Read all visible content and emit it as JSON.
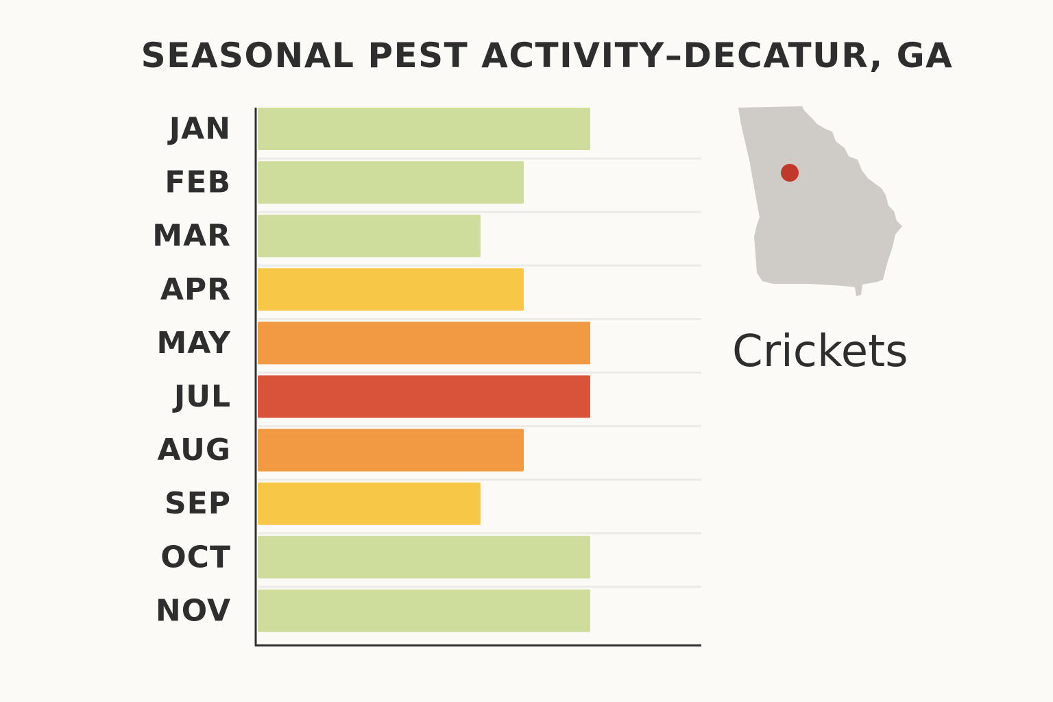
{
  "colors": {
    "background": "#fbfaf6",
    "axis": "#2e2e2e",
    "gridline": "#ecebe6",
    "low": "#cfdd9c",
    "moderate": "#f7c748",
    "high": "#f29a41",
    "peak": "#d9533b",
    "map_fill": "#cfcbc6",
    "map_marker": "#c0392b"
  },
  "map": {
    "icon": "georgia-state-map-icon",
    "marker_icon": "location-dot-icon"
  },
  "species": "Crickets",
  "chart_data": {
    "type": "bar",
    "orientation": "horizontal",
    "title": "SEASONAL PEST ACTIVITY–DECATUR, GA",
    "xlabel": "",
    "ylabel": "",
    "categories": [
      "JAN",
      "FEB",
      "MAR",
      "APR",
      "MAY",
      "JUL",
      "AUG",
      "SEP",
      "OCT",
      "NOV"
    ],
    "values": [
      5.0,
      4.0,
      3.35,
      4.0,
      5.0,
      5.0,
      4.0,
      3.35,
      5.0,
      5.0
    ],
    "bar_colors": [
      "#cfdd9c",
      "#cfdd9c",
      "#cfdd9c",
      "#f7c748",
      "#f29a41",
      "#d9533b",
      "#f29a41",
      "#f7c748",
      "#cfdd9c",
      "#cfdd9c"
    ],
    "xlim": [
      0,
      6.67
    ],
    "grid": true,
    "legend": "none"
  }
}
